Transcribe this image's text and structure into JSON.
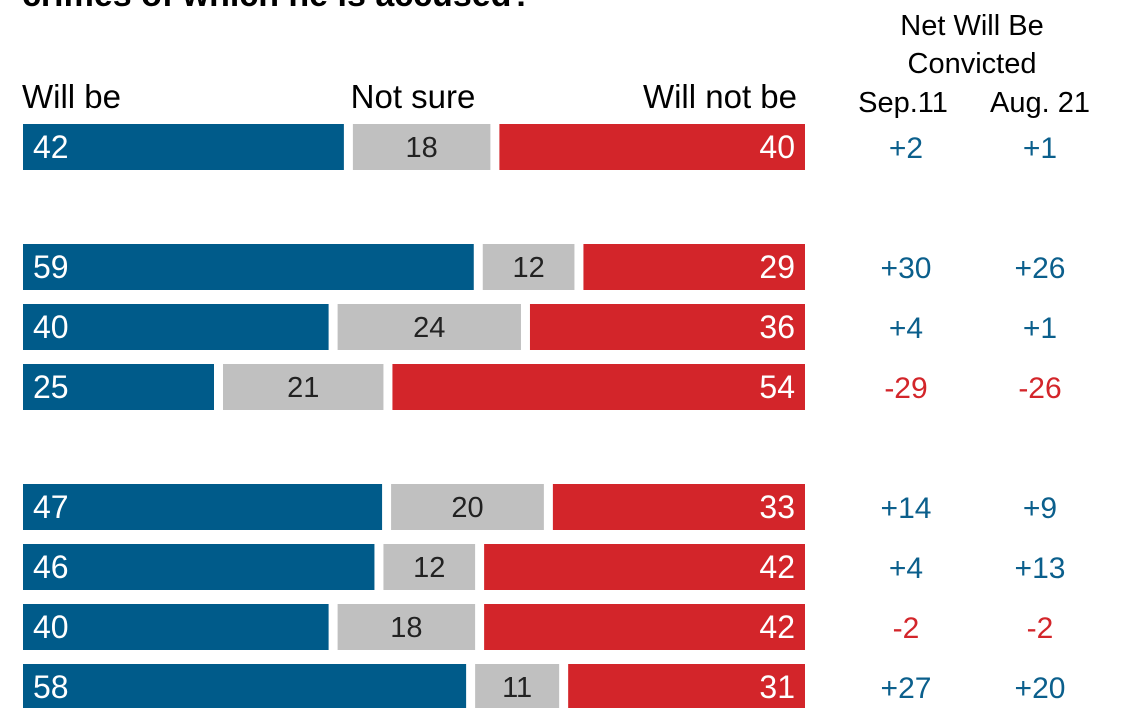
{
  "title": "crimes of which he is accused?",
  "legend": {
    "will_be": "Will be",
    "not_sure": "Not sure",
    "will_not_be": "Will not be"
  },
  "net_header": {
    "line1": "Net Will Be",
    "line2": "Convicted",
    "col1": "Sep.11",
    "col2": "Aug. 21"
  },
  "colors": {
    "will_be": "#005b8a",
    "not_sure": "#c0c0c0",
    "will_not_be": "#d3252a",
    "positive": "#0b5f8c",
    "negative": "#d3252a"
  },
  "chart_data": {
    "type": "bar",
    "stacked": true,
    "orientation": "horizontal",
    "series": [
      {
        "name": "Will be",
        "values": [
          42,
          59,
          40,
          25,
          47,
          46,
          40,
          58
        ]
      },
      {
        "name": "Not sure",
        "values": [
          18,
          12,
          24,
          21,
          20,
          12,
          18,
          11
        ]
      },
      {
        "name": "Will not be",
        "values": [
          40,
          29,
          36,
          54,
          33,
          42,
          42,
          31
        ]
      }
    ],
    "net": {
      "sep11": [
        "+2",
        "+30",
        "+4",
        "-29",
        "+14",
        "+4",
        "-2",
        "+27"
      ],
      "aug21": [
        "+1",
        "+26",
        "+1",
        "-26",
        "+9",
        "+13",
        "-2",
        "+20"
      ]
    }
  }
}
